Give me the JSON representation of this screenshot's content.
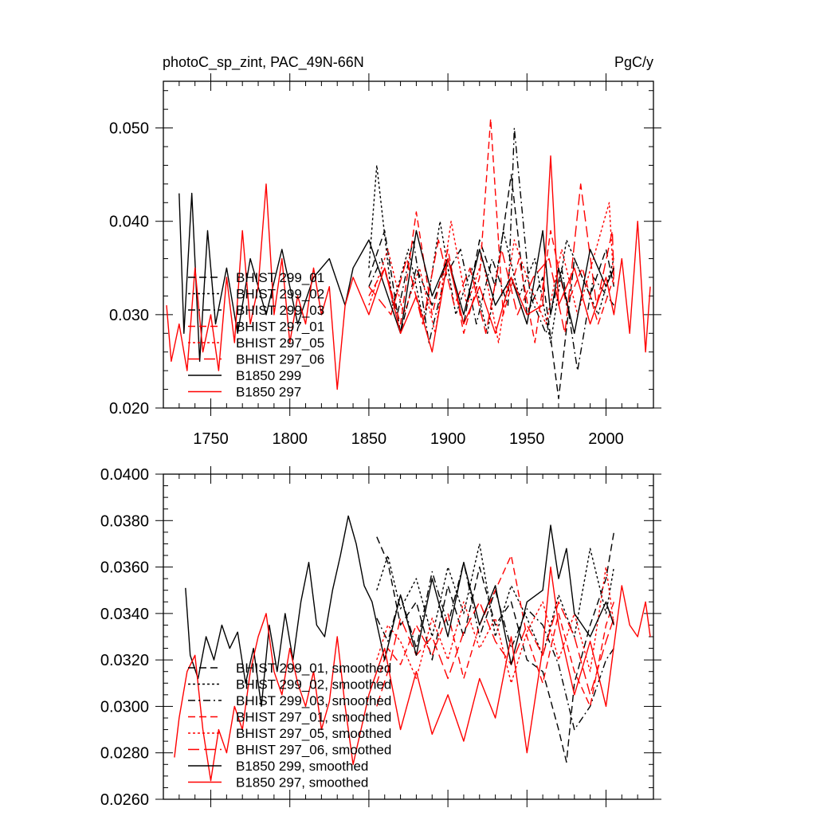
{
  "chart_data": [
    {
      "type": "line",
      "title": "photoC_sp_zint, PAC_49N-66N",
      "units": "PgC/y",
      "xlabel": "",
      "ylabel": "",
      "xlim": [
        1720,
        2030
      ],
      "ylim": [
        0.02,
        0.055
      ],
      "x_ticks": [
        1750,
        1800,
        1850,
        1900,
        1950,
        2000
      ],
      "x_tick_labels": [
        "1750",
        "1800",
        "1850",
        "1900",
        "1950",
        "2000"
      ],
      "y_ticks": [
        0.02,
        0.03,
        0.04,
        0.05
      ],
      "y_tick_labels": [
        "0.020",
        "0.030",
        "0.040",
        "0.050"
      ],
      "legend_position": "lower-left",
      "series": [
        {
          "name": "BHIST 299_01",
          "color": "#000000",
          "dash": "dash",
          "x": [
            1850,
            1860,
            1870,
            1880,
            1890,
            1900,
            1910,
            1920,
            1930,
            1940,
            1950,
            1960,
            1970,
            1980,
            1990,
            2000,
            2005
          ],
          "values": [
            0.034,
            0.039,
            0.028,
            0.035,
            0.031,
            0.036,
            0.029,
            0.038,
            0.033,
            0.045,
            0.03,
            0.034,
            0.021,
            0.036,
            0.032,
            0.037,
            0.033
          ]
        },
        {
          "name": "BHIST 299_02",
          "color": "#000000",
          "dash": "dot",
          "x": [
            1850,
            1855,
            1865,
            1875,
            1885,
            1895,
            1905,
            1915,
            1925,
            1935,
            1945,
            1955,
            1965,
            1975,
            1985,
            1995,
            2005
          ],
          "values": [
            0.035,
            0.046,
            0.031,
            0.037,
            0.029,
            0.04,
            0.03,
            0.035,
            0.028,
            0.039,
            0.032,
            0.036,
            0.027,
            0.038,
            0.034,
            0.03,
            0.036
          ]
        },
        {
          "name": "BHIST 299_03",
          "color": "#000000",
          "dash": "dashdot",
          "x": [
            1850,
            1858,
            1868,
            1878,
            1888,
            1898,
            1908,
            1918,
            1928,
            1938,
            1942,
            1952,
            1962,
            1972,
            1982,
            1992,
            2005
          ],
          "values": [
            0.033,
            0.036,
            0.03,
            0.038,
            0.027,
            0.034,
            0.037,
            0.029,
            0.036,
            0.031,
            0.05,
            0.032,
            0.028,
            0.035,
            0.024,
            0.034,
            0.031
          ]
        },
        {
          "name": "BHIST 297_01",
          "color": "#ff0000",
          "dash": "dash",
          "x": [
            1850,
            1860,
            1870,
            1880,
            1890,
            1900,
            1910,
            1920,
            1927,
            1935,
            1945,
            1955,
            1965,
            1975,
            1985,
            1995,
            2005
          ],
          "values": [
            0.032,
            0.035,
            0.029,
            0.041,
            0.03,
            0.037,
            0.028,
            0.034,
            0.051,
            0.03,
            0.036,
            0.027,
            0.039,
            0.031,
            0.035,
            0.029,
            0.034
          ]
        },
        {
          "name": "BHIST 297_05",
          "color": "#ff0000",
          "dash": "dot",
          "x": [
            1850,
            1862,
            1872,
            1882,
            1892,
            1902,
            1912,
            1922,
            1932,
            1942,
            1952,
            1962,
            1972,
            1982,
            1992,
            2002,
            2005
          ],
          "values": [
            0.031,
            0.037,
            0.03,
            0.035,
            0.028,
            0.04,
            0.031,
            0.036,
            0.027,
            0.038,
            0.033,
            0.029,
            0.037,
            0.03,
            0.036,
            0.042,
            0.033
          ]
        },
        {
          "name": "BHIST 297_06",
          "color": "#ff0000",
          "dash": "longdash",
          "x": [
            1850,
            1864,
            1874,
            1884,
            1894,
            1904,
            1914,
            1924,
            1934,
            1944,
            1954,
            1964,
            1974,
            1984,
            1994,
            2004,
            2005
          ],
          "values": [
            0.033,
            0.03,
            0.036,
            0.029,
            0.038,
            0.031,
            0.035,
            0.028,
            0.037,
            0.03,
            0.034,
            0.036,
            0.028,
            0.044,
            0.031,
            0.039,
            0.034
          ]
        },
        {
          "name": "B1850 299",
          "color": "#000000",
          "dash": "solid",
          "x": [
            1730,
            1733,
            1738,
            1743,
            1748,
            1753,
            1760,
            1767,
            1775,
            1785,
            1795,
            1805,
            1815,
            1825,
            1835,
            1840,
            1850,
            1860,
            1870,
            1880,
            1890,
            1900,
            1910,
            1920,
            1930,
            1940,
            1950,
            1960,
            1965,
            1970,
            1980,
            1990,
            2000,
            2005
          ],
          "values": [
            0.043,
            0.028,
            0.043,
            0.025,
            0.039,
            0.029,
            0.035,
            0.028,
            0.036,
            0.03,
            0.037,
            0.029,
            0.034,
            0.036,
            0.031,
            0.035,
            0.038,
            0.033,
            0.028,
            0.039,
            0.032,
            0.036,
            0.03,
            0.037,
            0.031,
            0.034,
            0.029,
            0.039,
            0.03,
            0.035,
            0.028,
            0.037,
            0.033,
            0.035
          ]
        },
        {
          "name": "B1850 297",
          "color": "#ff0000",
          "dash": "solid",
          "x": [
            1722,
            1725,
            1730,
            1735,
            1740,
            1745,
            1750,
            1755,
            1760,
            1765,
            1770,
            1775,
            1780,
            1785,
            1790,
            1795,
            1800,
            1805,
            1810,
            1815,
            1820,
            1825,
            1830,
            1835,
            1840,
            1850,
            1860,
            1870,
            1880,
            1890,
            1900,
            1910,
            1920,
            1930,
            1940,
            1950,
            1960,
            1965,
            1970,
            1980,
            1990,
            2000,
            2005,
            2010,
            2015,
            2020,
            2025,
            2028
          ],
          "values": [
            0.031,
            0.025,
            0.029,
            0.024,
            0.035,
            0.026,
            0.03,
            0.024,
            0.034,
            0.027,
            0.039,
            0.029,
            0.033,
            0.044,
            0.03,
            0.036,
            0.027,
            0.032,
            0.029,
            0.035,
            0.03,
            0.033,
            0.022,
            0.031,
            0.034,
            0.03,
            0.035,
            0.028,
            0.032,
            0.026,
            0.036,
            0.029,
            0.033,
            0.028,
            0.034,
            0.03,
            0.031,
            0.047,
            0.031,
            0.035,
            0.029,
            0.034,
            0.03,
            0.036,
            0.028,
            0.04,
            0.026,
            0.033
          ]
        }
      ]
    },
    {
      "type": "line",
      "title": "",
      "xlabel": "",
      "ylabel": "",
      "xlim": [
        1720,
        2030
      ],
      "ylim": [
        0.026,
        0.04
      ],
      "y_ticks": [
        0.026,
        0.028,
        0.03,
        0.032,
        0.034,
        0.036,
        0.038,
        0.04
      ],
      "y_tick_labels": [
        "0.0260",
        "0.0280",
        "0.0300",
        "0.0320",
        "0.0340",
        "0.0360",
        "0.0380",
        "0.0400"
      ],
      "legend_position": "lower-left",
      "series": [
        {
          "name": "BHIST 299_01, smoothed",
          "color": "#000000",
          "dash": "dash",
          "x": [
            1855,
            1862,
            1870,
            1880,
            1890,
            1900,
            1910,
            1920,
            1930,
            1940,
            1950,
            1960,
            1970,
            1975,
            1980,
            1990,
            2000,
            2005
          ],
          "values": [
            0.0373,
            0.0362,
            0.0335,
            0.0345,
            0.032,
            0.0352,
            0.033,
            0.036,
            0.0335,
            0.0345,
            0.032,
            0.0315,
            0.029,
            0.0276,
            0.031,
            0.0335,
            0.0355,
            0.0375
          ]
        },
        {
          "name": "BHIST 299_02, smoothed",
          "color": "#000000",
          "dash": "dot",
          "x": [
            1855,
            1862,
            1870,
            1880,
            1890,
            1900,
            1910,
            1920,
            1930,
            1940,
            1950,
            1960,
            1970,
            1980,
            1990,
            2000,
            2005
          ],
          "values": [
            0.035,
            0.0365,
            0.0342,
            0.0355,
            0.033,
            0.036,
            0.034,
            0.037,
            0.033,
            0.0352,
            0.0338,
            0.0322,
            0.0348,
            0.033,
            0.0368,
            0.034,
            0.036
          ]
        },
        {
          "name": "BHIST 299_03, smoothed",
          "color": "#000000",
          "dash": "dashdot",
          "x": [
            1855,
            1862,
            1870,
            1880,
            1890,
            1900,
            1910,
            1920,
            1930,
            1940,
            1950,
            1960,
            1970,
            1980,
            1990,
            2000,
            2005
          ],
          "values": [
            0.0338,
            0.0328,
            0.0348,
            0.0325,
            0.0358,
            0.0335,
            0.0362,
            0.033,
            0.035,
            0.0325,
            0.0342,
            0.0335,
            0.0318,
            0.029,
            0.03,
            0.032,
            0.0325
          ]
        },
        {
          "name": "BHIST 297_01, smoothed",
          "color": "#ff0000",
          "dash": "dash",
          "x": [
            1855,
            1862,
            1870,
            1880,
            1890,
            1900,
            1910,
            1920,
            1930,
            1940,
            1950,
            1960,
            1970,
            1980,
            1990,
            2000,
            2005
          ],
          "values": [
            0.031,
            0.0325,
            0.0318,
            0.0335,
            0.0322,
            0.034,
            0.0312,
            0.0335,
            0.035,
            0.0365,
            0.033,
            0.031,
            0.034,
            0.0315,
            0.03,
            0.0335,
            0.0345
          ]
        },
        {
          "name": "BHIST 297_05, smoothed",
          "color": "#ff0000",
          "dash": "dot",
          "x": [
            1855,
            1862,
            1870,
            1880,
            1890,
            1900,
            1910,
            1920,
            1930,
            1940,
            1950,
            1960,
            1970,
            1980,
            1990,
            2000,
            2005
          ],
          "values": [
            0.032,
            0.0335,
            0.0328,
            0.0312,
            0.0338,
            0.032,
            0.0345,
            0.0325,
            0.0338,
            0.031,
            0.0332,
            0.0345,
            0.032,
            0.034,
            0.0315,
            0.036,
            0.0335
          ]
        },
        {
          "name": "BHIST 297_06, smoothed",
          "color": "#ff0000",
          "dash": "longdash",
          "x": [
            1855,
            1862,
            1870,
            1880,
            1890,
            1900,
            1910,
            1920,
            1930,
            1940,
            1950,
            1960,
            1970,
            1980,
            1990,
            2000,
            2005
          ],
          "values": [
            0.03,
            0.0315,
            0.0338,
            0.0322,
            0.033,
            0.0312,
            0.0332,
            0.0345,
            0.0328,
            0.0318,
            0.0335,
            0.0322,
            0.0345,
            0.033,
            0.0305,
            0.0328,
            0.0338
          ]
        },
        {
          "name": "B1850 299, smoothed",
          "color": "#000000",
          "dash": "solid",
          "x": [
            1734,
            1737,
            1742,
            1747,
            1752,
            1757,
            1762,
            1767,
            1772,
            1777,
            1782,
            1787,
            1792,
            1797,
            1802,
            1807,
            1812,
            1817,
            1822,
            1827,
            1832,
            1837,
            1842,
            1847,
            1852,
            1860,
            1870,
            1880,
            1890,
            1900,
            1910,
            1920,
            1930,
            1940,
            1950,
            1960,
            1965,
            1970,
            1975,
            1980,
            1990,
            2000,
            2005
          ],
          "values": [
            0.0351,
            0.0322,
            0.0312,
            0.033,
            0.032,
            0.0335,
            0.0325,
            0.0332,
            0.031,
            0.0325,
            0.03,
            0.0335,
            0.0315,
            0.034,
            0.032,
            0.0345,
            0.0362,
            0.0335,
            0.033,
            0.035,
            0.0365,
            0.0382,
            0.037,
            0.0352,
            0.0345,
            0.032,
            0.0348,
            0.0322,
            0.0355,
            0.033,
            0.0362,
            0.0335,
            0.0352,
            0.0318,
            0.0345,
            0.035,
            0.0378,
            0.0355,
            0.0368,
            0.034,
            0.033,
            0.0345,
            0.0335
          ]
        },
        {
          "name": "B1850 297, smoothed",
          "color": "#ff0000",
          "dash": "solid",
          "x": [
            1727,
            1730,
            1735,
            1740,
            1745,
            1750,
            1755,
            1760,
            1765,
            1770,
            1775,
            1780,
            1785,
            1790,
            1795,
            1800,
            1805,
            1810,
            1815,
            1820,
            1825,
            1830,
            1835,
            1840,
            1845,
            1850,
            1860,
            1870,
            1880,
            1890,
            1900,
            1910,
            1920,
            1930,
            1940,
            1950,
            1960,
            1965,
            1970,
            1980,
            1990,
            2000,
            2010,
            2015,
            2020,
            2025,
            2028
          ],
          "values": [
            0.0278,
            0.0295,
            0.0315,
            0.0322,
            0.029,
            0.0268,
            0.029,
            0.028,
            0.03,
            0.029,
            0.0315,
            0.033,
            0.034,
            0.0315,
            0.0305,
            0.0325,
            0.031,
            0.03,
            0.0315,
            0.029,
            0.0302,
            0.033,
            0.03,
            0.0275,
            0.029,
            0.0305,
            0.0325,
            0.029,
            0.0315,
            0.0288,
            0.0305,
            0.0285,
            0.0312,
            0.0295,
            0.033,
            0.028,
            0.0325,
            0.036,
            0.0335,
            0.0305,
            0.0328,
            0.03,
            0.0352,
            0.0335,
            0.033,
            0.0345,
            0.033
          ]
        }
      ]
    }
  ]
}
